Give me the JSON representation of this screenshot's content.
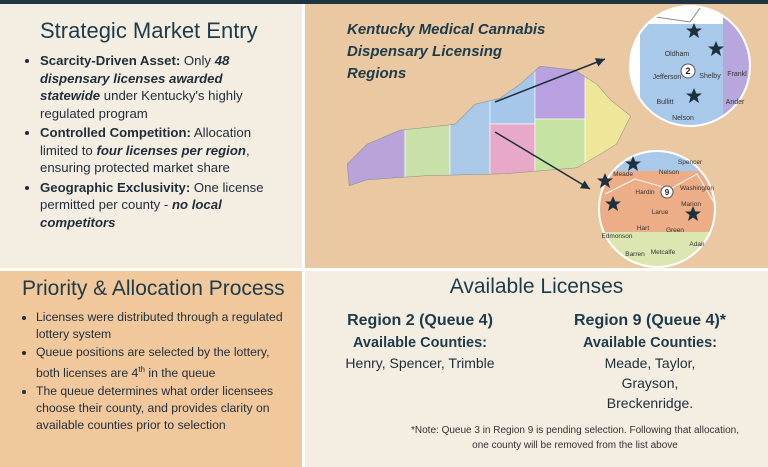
{
  "market_entry": {
    "title": "Strategic Market Entry",
    "bullets": [
      [
        "Scarcity-Driven Asset:",
        " Only ",
        "48 dispensary licenses awarded statewide",
        " under Kentucky's highly regulated program"
      ],
      [
        "Controlled Competition:",
        " Allocation limited to ",
        "four licenses per region",
        ", ensuring protected market share"
      ],
      [
        "Geographic Exclusivity:",
        " One license permitted per county - ",
        "no local competitors"
      ]
    ]
  },
  "map": {
    "title_lines": [
      "Kentucky Medical Cannabis",
      "Dispensary Licensing",
      "Regions"
    ],
    "inset_top_region": "2",
    "inset_bottom_region": "9",
    "inset_top_labels": [
      "Oldham",
      "Jefferson",
      "Shelby",
      "Bullitt",
      "Nelson",
      "Frankl",
      "Ander"
    ],
    "inset_bottom_labels": [
      "Meade",
      "Hardin",
      "Larue",
      "Marion",
      "Washington",
      "Hart",
      "Green",
      "Adair",
      "Edmonson",
      "Barren",
      "Metcalfe",
      "Spencer",
      "Nelson"
    ]
  },
  "priority": {
    "title": "Priority & Allocation Process",
    "bullets": [
      [
        "Licenses were distributed through a regulated lottery system"
      ],
      [
        "Queue positions are selected by the lottery, both licenses are 4",
        "th",
        " in the queue"
      ],
      [
        "The queue determines what order licensees choose their county, and provides clarity on available counties prior to selection"
      ]
    ]
  },
  "available": {
    "title": "Available Licenses",
    "regions": [
      {
        "heading": "Region 2 (Queue 4)",
        "label": "Available Counties:",
        "counties": "Henry, Spencer, Trimble"
      },
      {
        "heading": "Region 9 (Queue 4)*",
        "label": "Available Counties:",
        "counties": "Meade, Taylor, Grayson, Breckenridge."
      }
    ],
    "note": "*Note: Queue 3 in Region 9 is pending selection. Following that allocation, one county will be removed from the list above"
  }
}
